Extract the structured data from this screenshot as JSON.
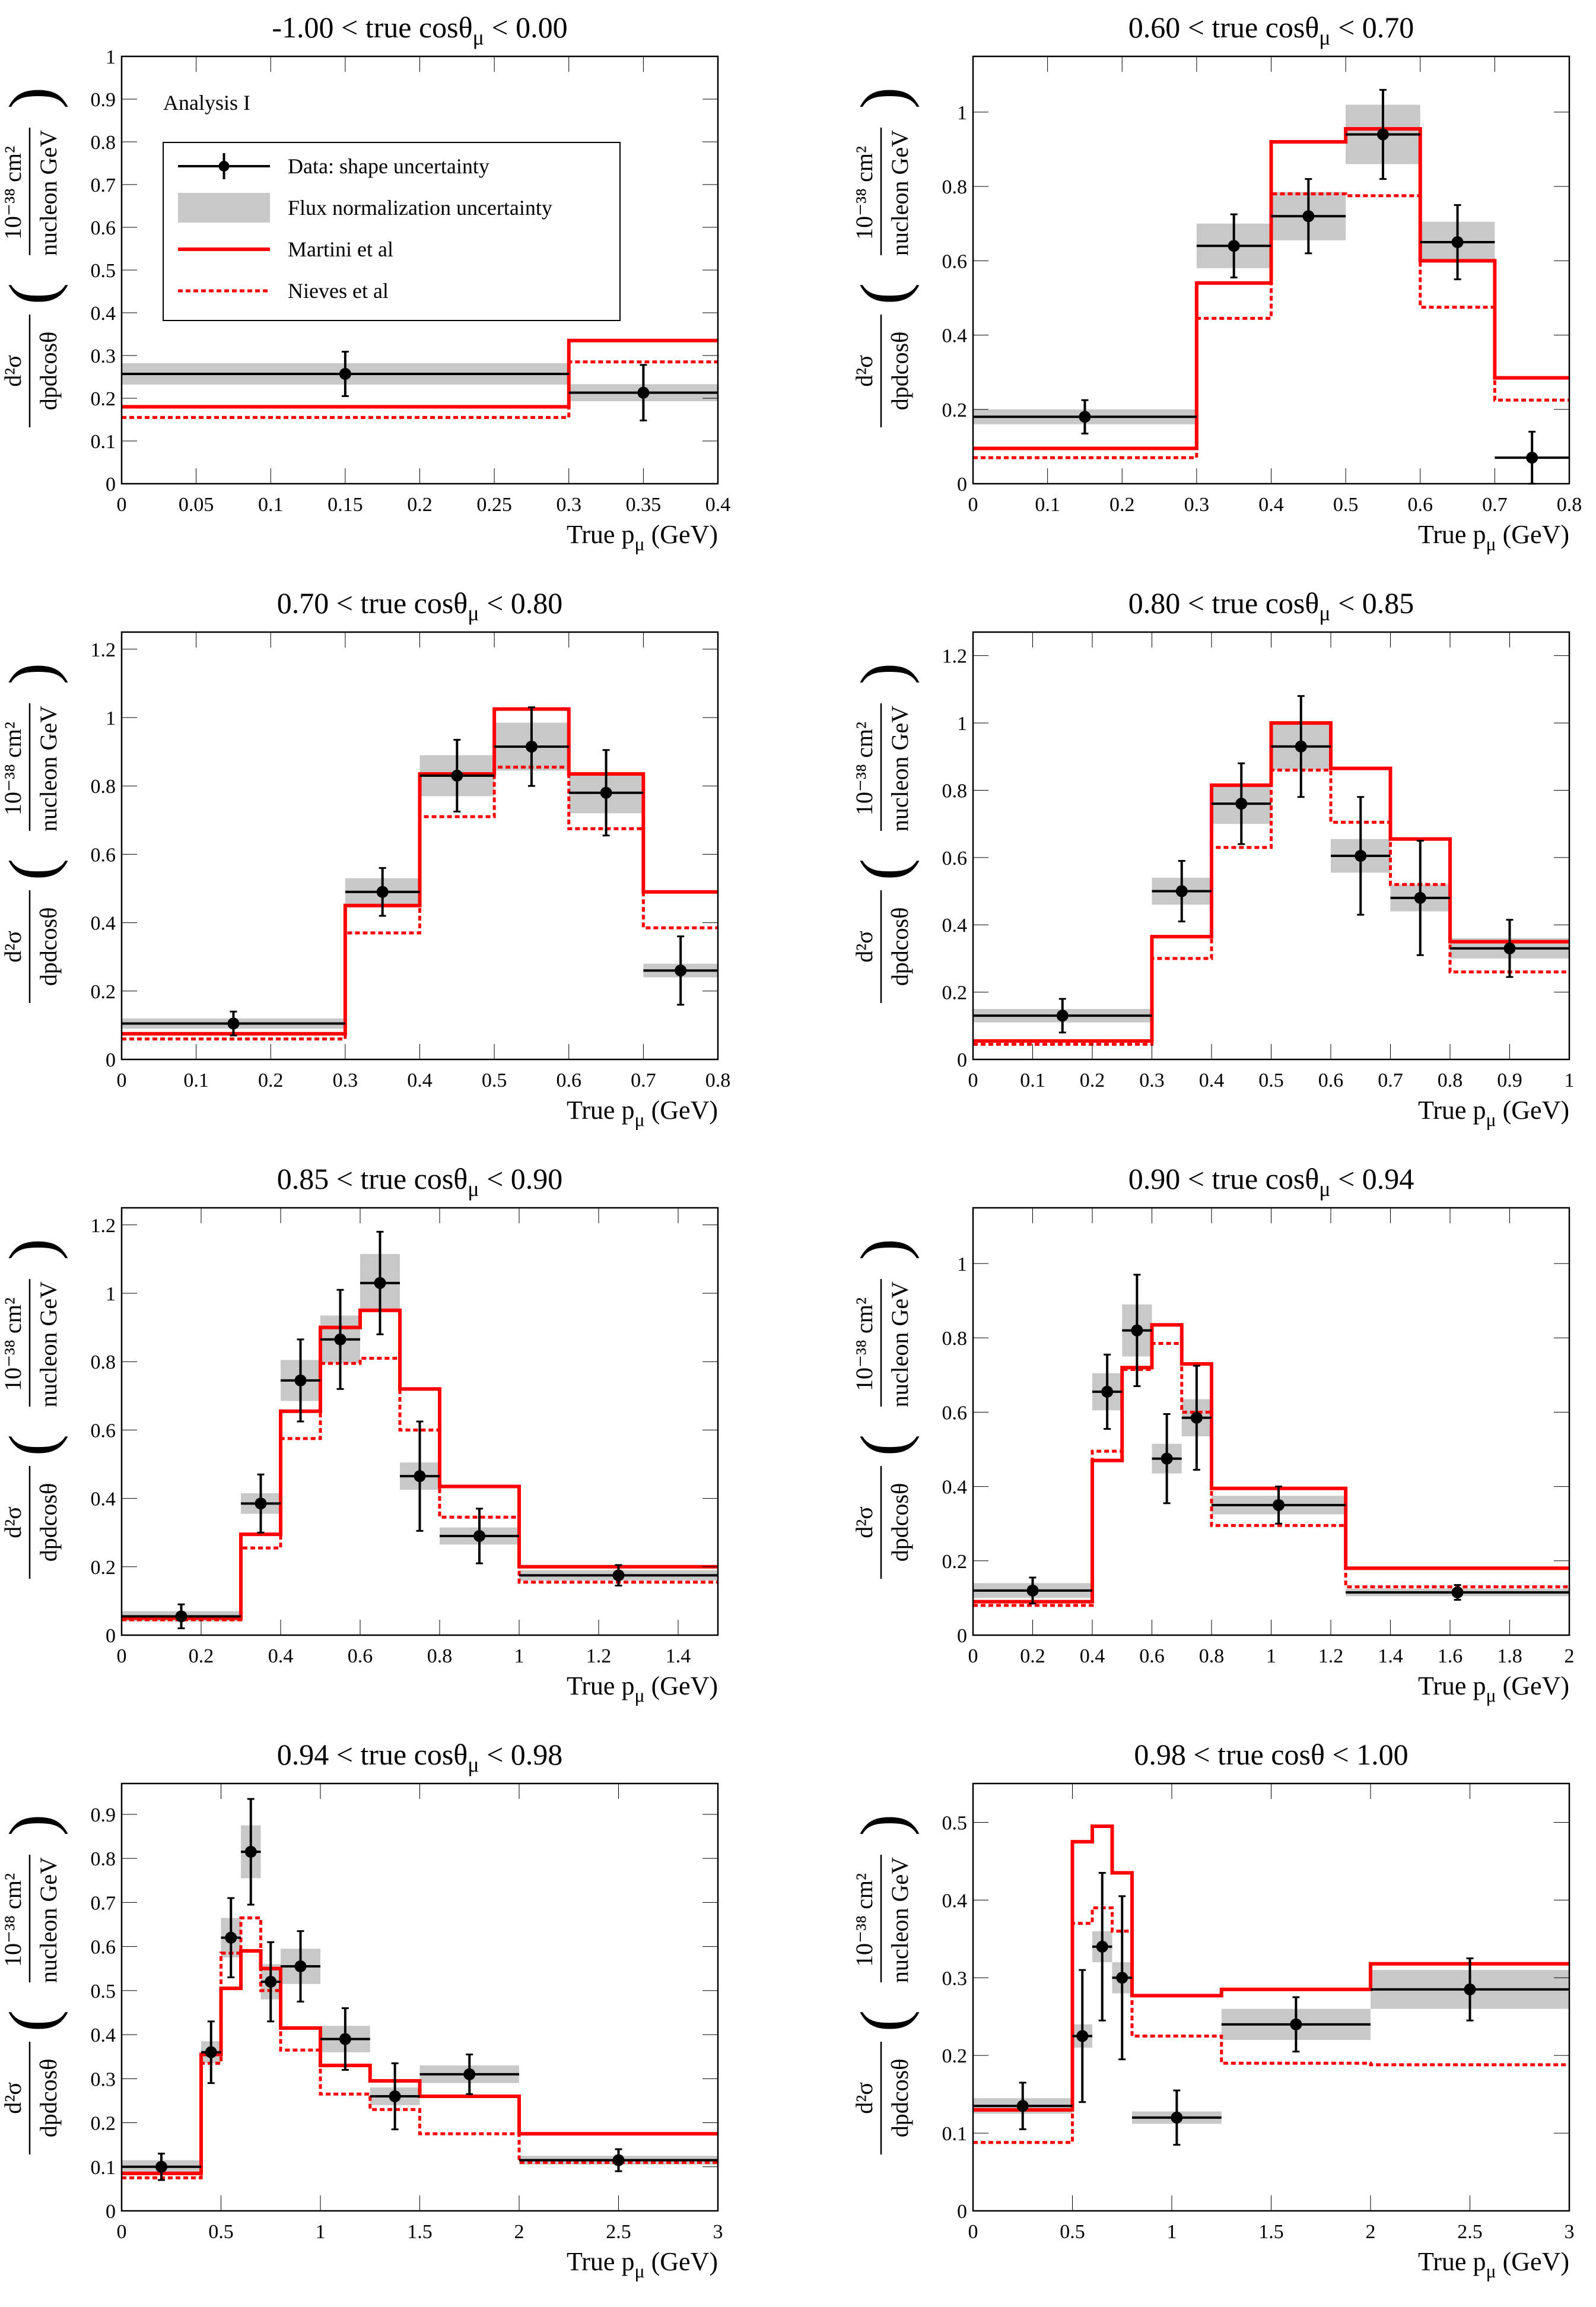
{
  "figure": {
    "label": "Analysis I",
    "xlabel": "True p",
    "xlabel_sub": "μ",
    "xlabel_unit": " (GeV)",
    "ylabel": {
      "num": "d²σ",
      "den": "dpdcosθ",
      "unit_num": "10⁻³⁸ cm²",
      "unit_den": "nucleon GeV"
    }
  },
  "legend": {
    "data": "Data: shape uncertainty",
    "flux": "Flux normalization uncertainty",
    "martini": "Martini et al",
    "nieves": "Nieves et al"
  },
  "colors": {
    "data": "#000000",
    "band": "#c8c8c8",
    "model": "#ff0000"
  },
  "chart_data": [
    {
      "type": "histogram",
      "title": "-1.00 < true cosθ_μ < 0.00",
      "title_parts": [
        "-1.00 < true cosθ",
        "μ",
        " < 0.00"
      ],
      "xlim": [
        0,
        0.4
      ],
      "ylim": [
        0,
        1
      ],
      "xticks": [
        "0",
        "0.05",
        "0.1",
        "0.15",
        "0.2",
        "0.25",
        "0.3",
        "0.35",
        "0.4"
      ],
      "yticks": [
        "0",
        "0.1",
        "0.2",
        "0.3",
        "0.4",
        "0.5",
        "0.6",
        "0.7",
        "0.8",
        "0.9",
        "1"
      ],
      "bins": [
        0,
        0.3,
        0.4
      ],
      "data": [
        0.257,
        0.213
      ],
      "shape_err": [
        0.052,
        0.065
      ],
      "flux_err": [
        0.025,
        0.02
      ],
      "martini": [
        0.18,
        0.335
      ],
      "nieves": [
        0.155,
        0.285
      ]
    },
    {
      "type": "histogram",
      "title": "0.60 < true cosθ_μ < 0.70",
      "title_parts": [
        "0.60 < true cosθ",
        "μ",
        " < 0.70"
      ],
      "xlim": [
        0,
        0.8
      ],
      "ylim": [
        0,
        1.15
      ],
      "xticks": [
        "0",
        "0.1",
        "0.2",
        "0.3",
        "0.4",
        "0.5",
        "0.6",
        "0.7",
        "0.8"
      ],
      "yticks": [
        "0",
        "0.2",
        "0.4",
        "0.6",
        "0.8",
        "1"
      ],
      "bins": [
        0,
        0.3,
        0.4,
        0.5,
        0.6,
        0.7,
        0.8
      ],
      "data": [
        0.18,
        0.64,
        0.72,
        0.94,
        0.65,
        0.07
      ],
      "shape_err": [
        0.045,
        0.085,
        0.1,
        0.12,
        0.1,
        0.07
      ],
      "flux_err": [
        0.02,
        0.06,
        0.065,
        0.08,
        0.055,
        0.0
      ],
      "martini": [
        0.095,
        0.54,
        0.92,
        0.955,
        0.6,
        0.285
      ],
      "nieves": [
        0.07,
        0.445,
        0.78,
        0.775,
        0.475,
        0.225
      ]
    },
    {
      "type": "histogram",
      "title": "0.70 < true cosθ_μ < 0.80",
      "title_parts": [
        "0.70 < true cosθ",
        "μ",
        " < 0.80"
      ],
      "xlim": [
        0,
        0.8
      ],
      "ylim": [
        0,
        1.25
      ],
      "xticks": [
        "0",
        "0.1",
        "0.2",
        "0.3",
        "0.4",
        "0.5",
        "0.6",
        "0.7",
        "0.8"
      ],
      "yticks": [
        "0",
        "0.2",
        "0.4",
        "0.6",
        "0.8",
        "1",
        "1.2"
      ],
      "bins": [
        0,
        0.3,
        0.4,
        0.5,
        0.6,
        0.7,
        0.8
      ],
      "data": [
        0.105,
        0.49,
        0.83,
        0.915,
        0.78,
        0.26
      ],
      "shape_err": [
        0.035,
        0.07,
        0.105,
        0.115,
        0.125,
        0.1
      ],
      "flux_err": [
        0.015,
        0.04,
        0.06,
        0.07,
        0.06,
        0.02
      ],
      "martini": [
        0.075,
        0.45,
        0.835,
        1.025,
        0.835,
        0.49
      ],
      "nieves": [
        0.06,
        0.37,
        0.71,
        0.855,
        0.675,
        0.385
      ]
    },
    {
      "type": "histogram",
      "title": "0.80 < true cosθ_μ < 0.85",
      "title_parts": [
        "0.80 < true cosθ",
        "μ",
        " < 0.85"
      ],
      "xlim": [
        0,
        1
      ],
      "ylim": [
        0,
        1.27
      ],
      "xticks": [
        "0",
        "0.1",
        "0.2",
        "0.3",
        "0.4",
        "0.5",
        "0.6",
        "0.7",
        "0.8",
        "0.9",
        "1"
      ],
      "yticks": [
        "0",
        "0.2",
        "0.4",
        "0.6",
        "0.8",
        "1",
        "1.2"
      ],
      "bins": [
        0,
        0.3,
        0.4,
        0.5,
        0.6,
        0.7,
        0.8,
        1.0
      ],
      "data": [
        0.13,
        0.5,
        0.76,
        0.93,
        0.605,
        0.48,
        0.33
      ],
      "shape_err": [
        0.05,
        0.09,
        0.12,
        0.15,
        0.175,
        0.17,
        0.085
      ],
      "flux_err": [
        0.02,
        0.04,
        0.06,
        0.07,
        0.05,
        0.04,
        0.03
      ],
      "martini": [
        0.055,
        0.365,
        0.815,
        1.0,
        0.865,
        0.655,
        0.35
      ],
      "nieves": [
        0.045,
        0.3,
        0.63,
        0.86,
        0.705,
        0.52,
        0.26
      ]
    },
    {
      "type": "histogram",
      "title": "0.85 < true cosθ_μ < 0.90",
      "title_parts": [
        "0.85 < true cosθ",
        "μ",
        " < 0.90"
      ],
      "xlim": [
        0,
        1.5
      ],
      "ylim": [
        0,
        1.25
      ],
      "xticks": [
        "0",
        "0.2",
        "0.4",
        "0.6",
        "0.8",
        "1",
        "1.2",
        "1.4"
      ],
      "yticks": [
        "0",
        "0.2",
        "0.4",
        "0.6",
        "0.8",
        "1",
        "1.2"
      ],
      "bins": [
        0,
        0.3,
        0.4,
        0.5,
        0.6,
        0.7,
        0.8,
        1.0,
        1.5
      ],
      "data": [
        0.055,
        0.385,
        0.745,
        0.865,
        1.03,
        0.465,
        0.29,
        0.175
      ],
      "shape_err": [
        0.035,
        0.085,
        0.12,
        0.145,
        0.15,
        0.16,
        0.08,
        0.03
      ],
      "flux_err": [
        0.015,
        0.03,
        0.06,
        0.07,
        0.085,
        0.04,
        0.025,
        0.015
      ],
      "martini": [
        0.05,
        0.295,
        0.655,
        0.9,
        0.95,
        0.72,
        0.435,
        0.2
      ],
      "nieves": [
        0.045,
        0.255,
        0.575,
        0.795,
        0.81,
        0.6,
        0.345,
        0.155
      ]
    },
    {
      "type": "histogram",
      "title": "0.90 < true cosθ_μ < 0.94",
      "title_parts": [
        "0.90 < true cosθ",
        "μ",
        " < 0.94"
      ],
      "xlim": [
        0,
        2
      ],
      "ylim": [
        0,
        1.15
      ],
      "xticks": [
        "0",
        "0.2",
        "0.4",
        "0.6",
        "0.8",
        "1",
        "1.2",
        "1.4",
        "1.6",
        "1.8",
        "2"
      ],
      "yticks": [
        "0",
        "0.2",
        "0.4",
        "0.6",
        "0.8",
        "1"
      ],
      "bins": [
        0,
        0.4,
        0.5,
        0.6,
        0.7,
        0.8,
        1.25,
        2.0
      ],
      "data": [
        0.12,
        0.655,
        0.82,
        0.475,
        0.585,
        0.35,
        0.115
      ],
      "shape_err": [
        0.035,
        0.1,
        0.15,
        0.12,
        0.14,
        0.05,
        0.02
      ],
      "flux_err": [
        0.02,
        0.05,
        0.07,
        0.04,
        0.05,
        0.025,
        0.01
      ],
      "martini": [
        0.09,
        0.47,
        0.72,
        0.835,
        0.73,
        0.395,
        0.18
      ],
      "nieves": [
        0.08,
        0.495,
        0.715,
        0.785,
        0.6,
        0.295,
        0.13
      ]
    },
    {
      "type": "histogram",
      "title": "0.94 < true cosθ_μ < 0.98",
      "title_parts": [
        "0.94 < true cosθ",
        "μ",
        " < 0.98"
      ],
      "xlim": [
        0,
        3
      ],
      "ylim": [
        0,
        0.97
      ],
      "xticks": [
        "0",
        "0.5",
        "1",
        "1.5",
        "2",
        "2.5",
        "3"
      ],
      "yticks": [
        "0",
        "0.1",
        "0.2",
        "0.3",
        "0.4",
        "0.5",
        "0.6",
        "0.7",
        "0.8",
        "0.9"
      ],
      "bins": [
        0,
        0.4,
        0.5,
        0.6,
        0.7,
        0.8,
        1.0,
        1.25,
        1.5,
        2.0,
        3.0
      ],
      "data": [
        0.1,
        0.36,
        0.62,
        0.815,
        0.52,
        0.555,
        0.39,
        0.26,
        0.31,
        0.115
      ],
      "shape_err": [
        0.03,
        0.07,
        0.09,
        0.12,
        0.09,
        0.08,
        0.07,
        0.075,
        0.045,
        0.025
      ],
      "flux_err": [
        0.015,
        0.025,
        0.045,
        0.06,
        0.04,
        0.04,
        0.03,
        0.02,
        0.02,
        0.01
      ],
      "martini": [
        0.085,
        0.355,
        0.505,
        0.59,
        0.55,
        0.415,
        0.33,
        0.295,
        0.26,
        0.175
      ],
      "nieves": [
        0.075,
        0.335,
        0.585,
        0.665,
        0.5,
        0.365,
        0.265,
        0.23,
        0.175,
        0.11
      ]
    },
    {
      "type": "histogram",
      "title": "0.98 < true cosθ < 1.00",
      "title_parts": [
        "0.98 < true cosθ",
        "",
        " < 1.00"
      ],
      "xlim": [
        0,
        3
      ],
      "ylim": [
        0,
        0.55
      ],
      "xticks": [
        "0",
        "0.5",
        "1",
        "1.5",
        "2",
        "2.5",
        "3"
      ],
      "yticks": [
        "0",
        "0.1",
        "0.2",
        "0.3",
        "0.4",
        "0.5"
      ],
      "bins": [
        0,
        0.5,
        0.6,
        0.7,
        0.8,
        1.25,
        2.0,
        3.0
      ],
      "data": [
        0.135,
        0.225,
        0.34,
        0.3,
        0.12,
        0.24,
        0.285
      ],
      "shape_err": [
        0.03,
        0.085,
        0.095,
        0.105,
        0.035,
        0.035,
        0.04
      ],
      "flux_err": [
        0.01,
        0.015,
        0.02,
        0.02,
        0.008,
        0.02,
        0.025
      ],
      "martini": [
        0.13,
        0.475,
        0.495,
        0.435,
        0.277,
        0.285,
        0.318
      ],
      "nieves": [
        0.088,
        0.37,
        0.39,
        0.36,
        0.225,
        0.19,
        0.188
      ]
    }
  ]
}
